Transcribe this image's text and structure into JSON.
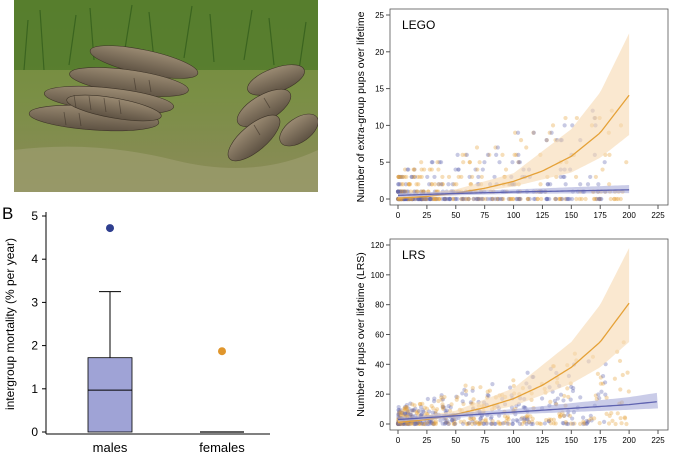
{
  "photo": {
    "description_icon": "mongoose-group-photo"
  },
  "panel_b_label": "B",
  "colors": {
    "male": "#5f63b0",
    "male_fill": "#9fa3d6",
    "female": "#e5a137",
    "female_fill": "#f7d9b0",
    "outlier_male": "#2f3f8f",
    "outlier_female": "#e0962c"
  },
  "chart_data": [
    {
      "type": "box",
      "ylabel": "intergroup mortality (% per year)",
      "ylim": [
        0,
        5
      ],
      "yticks": [
        "0",
        "1",
        "2",
        "3",
        "4",
        "5"
      ],
      "categories": [
        "males",
        "females"
      ],
      "boxes": [
        {
          "name": "males",
          "min": 0,
          "q1": 0,
          "median": 0.97,
          "q3": 1.72,
          "max": 3.25,
          "outliers": [
            4.72
          ]
        },
        {
          "name": "females",
          "min": 0,
          "q1": 0,
          "median": 0,
          "q3": 0,
          "max": 0,
          "outliers": [
            1.87
          ]
        }
      ]
    },
    {
      "type": "scatter",
      "title": "LEGO",
      "ylabel": "Number of extra-group pups over lifetime",
      "xlim": [
        0,
        225
      ],
      "ylim": [
        0,
        25
      ],
      "xticks": [
        "0",
        "25",
        "50",
        "75",
        "100",
        "125",
        "150",
        "175",
        "200",
        "225"
      ],
      "yticks": [
        "0",
        "5",
        "10",
        "15",
        "20",
        "25"
      ],
      "series": [
        {
          "group": "female",
          "fit": [
            [
              0,
              0.1
            ],
            [
              25,
              0.35
            ],
            [
              50,
              0.8
            ],
            [
              75,
              1.45
            ],
            [
              100,
              2.4
            ],
            [
              125,
              3.8
            ],
            [
              150,
              5.8
            ],
            [
              175,
              9.0
            ],
            [
              200,
              14.1
            ]
          ],
          "band_upper": [
            [
              0,
              0.3
            ],
            [
              50,
              1.3
            ],
            [
              100,
              3.5
            ],
            [
              150,
              9.5
            ],
            [
              175,
              14.5
            ],
            [
              200,
              22.5
            ]
          ],
          "band_lower": [
            [
              0,
              0.0
            ],
            [
              50,
              0.5
            ],
            [
              100,
              1.7
            ],
            [
              150,
              3.6
            ],
            [
              175,
              5.6
            ],
            [
              200,
              8.7
            ]
          ]
        },
        {
          "group": "male",
          "fit": [
            [
              0,
              0.5
            ],
            [
              50,
              0.75
            ],
            [
              100,
              0.95
            ],
            [
              150,
              1.1
            ],
            [
              200,
              1.25
            ]
          ],
          "band_upper": [
            [
              0,
              0.8
            ],
            [
              100,
              1.3
            ],
            [
              200,
              1.9
            ]
          ],
          "band_lower": [
            [
              0,
              0.3
            ],
            [
              100,
              0.7
            ],
            [
              200,
              0.8
            ]
          ]
        }
      ]
    },
    {
      "type": "scatter",
      "title": "LRS",
      "ylabel": "Number of pups over lifetime (LRS)",
      "xlim": [
        0,
        225
      ],
      "ylim": [
        0,
        120
      ],
      "xticks": [
        "0",
        "25",
        "50",
        "75",
        "100",
        "125",
        "150",
        "175",
        "200",
        "225"
      ],
      "yticks": [
        "0",
        "20",
        "40",
        "60",
        "80",
        "100",
        "120"
      ],
      "series": [
        {
          "group": "female",
          "fit": [
            [
              0,
              1
            ],
            [
              25,
              3
            ],
            [
              50,
              6.5
            ],
            [
              75,
              11
            ],
            [
              100,
              17
            ],
            [
              125,
              26
            ],
            [
              150,
              38
            ],
            [
              175,
              55
            ],
            [
              200,
              81
            ]
          ],
          "band_upper": [
            [
              0,
              2.5
            ],
            [
              50,
              9
            ],
            [
              100,
              24
            ],
            [
              150,
              55
            ],
            [
              175,
              80
            ],
            [
              200,
              118
            ]
          ],
          "band_lower": [
            [
              0,
              0.4
            ],
            [
              50,
              4.5
            ],
            [
              100,
              12
            ],
            [
              150,
              27
            ],
            [
              175,
              38
            ],
            [
              200,
              55
            ]
          ]
        },
        {
          "group": "male",
          "fit": [
            [
              0,
              3
            ],
            [
              50,
              5.5
            ],
            [
              100,
              8
            ],
            [
              150,
              10.5
            ],
            [
              200,
              13
            ],
            [
              225,
              15
            ]
          ],
          "band_upper": [
            [
              0,
              4.5
            ],
            [
              100,
              10
            ],
            [
              200,
              18
            ],
            [
              225,
              21
            ]
          ],
          "band_lower": [
            [
              0,
              1.8
            ],
            [
              100,
              6.5
            ],
            [
              200,
              9.5
            ],
            [
              225,
              10.5
            ]
          ]
        }
      ]
    }
  ]
}
